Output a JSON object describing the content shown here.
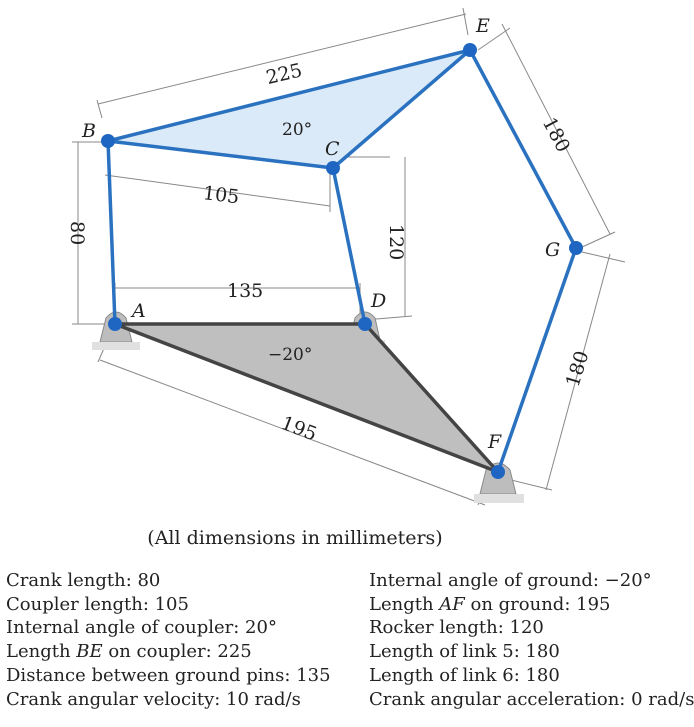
{
  "diagram": {
    "points": {
      "A": "A",
      "B": "B",
      "C": "C",
      "D": "D",
      "E": "E",
      "F": "F",
      "G": "G"
    },
    "dimensions": {
      "be": "225",
      "bc": "105",
      "ab": "80",
      "cd": "120",
      "ad": "135",
      "eg": "180",
      "gf": "180",
      "af": "195"
    },
    "angles": {
      "coupler": "20°",
      "ground": "−20°"
    },
    "colors": {
      "link": "#2a72c0",
      "pin": "#1f66c2",
      "coupler_fill": "#dbeaf9",
      "ground_fill": "#bfbfbf",
      "ground_edge": "#444444"
    }
  },
  "caption": "(All dimensions in millimeters)",
  "specs": {
    "left": [
      {
        "label": "Crank length",
        "value": "80"
      },
      {
        "label": "Coupler length",
        "value": "105"
      },
      {
        "label": "Internal angle of coupler",
        "value": "20°"
      },
      {
        "label_pre": "Length ",
        "label_italic": "BE",
        "label_post": " on coupler",
        "value": "225"
      },
      {
        "label": "Distance between ground pins",
        "value": "135"
      },
      {
        "label": "Crank angular velocity",
        "value": "10 rad/s"
      }
    ],
    "right": [
      {
        "label": "Internal angle of ground",
        "value": "−20°"
      },
      {
        "label_pre": "Length ",
        "label_italic": "AF",
        "label_post": " on ground",
        "value": "195"
      },
      {
        "label": "Rocker length",
        "value": "120"
      },
      {
        "label": "Length of link 5",
        "value": "180"
      },
      {
        "label": "Length of link 6",
        "value": "180"
      },
      {
        "label": "Crank angular acceleration",
        "value": "0 rad/s"
      }
    ]
  }
}
